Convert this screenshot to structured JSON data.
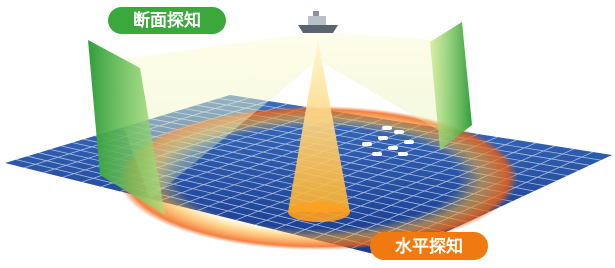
{
  "labels": {
    "vertical": "断面探知",
    "horizontal": "水平探知"
  }
}
